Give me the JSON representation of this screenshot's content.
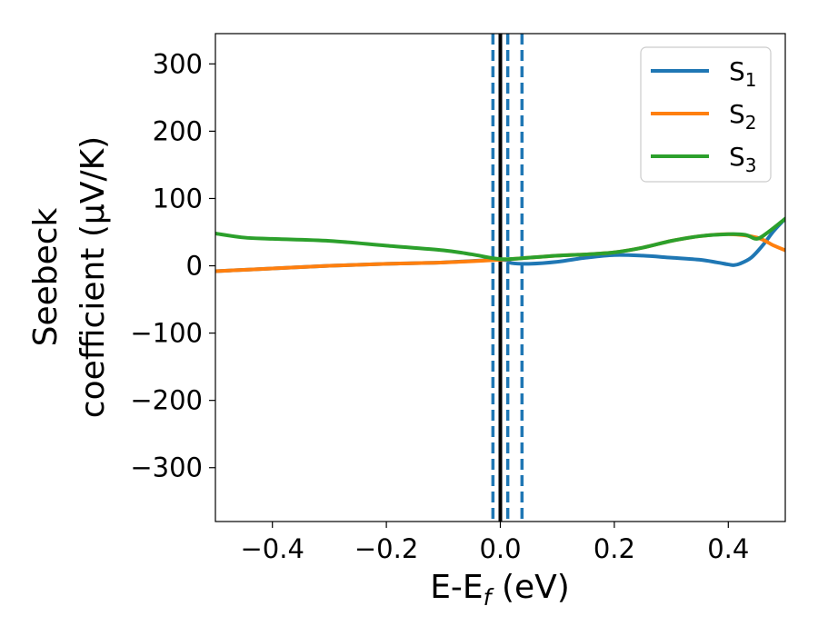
{
  "chart_data": {
    "type": "line",
    "xlabel": "E-E",
    "xlabel_sub": "f",
    "xlabel_unit": "(eV)",
    "ylabel_line1": "Seebeck",
    "ylabel_line2": "coefficient  (μV/K)",
    "xlim": [
      -0.5,
      0.5
    ],
    "ylim": [
      -380,
      345
    ],
    "xticks": [
      -0.4,
      -0.2,
      0.0,
      0.2,
      0.4
    ],
    "xtick_labels": [
      "−0.4",
      "−0.2",
      "0.0",
      "0.2",
      "0.4"
    ],
    "yticks": [
      300,
      200,
      100,
      0,
      -100,
      -200,
      -300
    ],
    "ytick_labels": [
      "300",
      "200",
      "100",
      "0",
      "−100",
      "−200",
      "−300"
    ],
    "grid": false,
    "legend_position": "top-right",
    "vertical_lines": [
      {
        "x": 0.0,
        "style": "solid",
        "color": "#000000"
      },
      {
        "x": -0.013,
        "style": "dashed",
        "color": "#1f77b4"
      },
      {
        "x": 0.013,
        "style": "dashed",
        "color": "#1f77b4"
      },
      {
        "x": 0.038,
        "style": "dashed",
        "color": "#1f77b4"
      }
    ],
    "series": [
      {
        "name": "S",
        "sub": "1",
        "color": "#1f77b4",
        "x": [
          -0.5,
          -0.4,
          -0.3,
          -0.2,
          -0.1,
          0.0,
          0.02,
          0.05,
          0.1,
          0.15,
          0.2,
          0.25,
          0.3,
          0.35,
          0.38,
          0.4,
          0.41,
          0.42,
          0.44,
          0.46,
          0.48,
          0.5
        ],
        "y": [
          -8,
          -4,
          0,
          3,
          5,
          9,
          4,
          3,
          6,
          12,
          16,
          15,
          12,
          9,
          5,
          2,
          1,
          3,
          12,
          30,
          52,
          70
        ]
      },
      {
        "name": "S",
        "sub": "2",
        "color": "#ff7f0e",
        "x": [
          -0.5,
          -0.4,
          -0.3,
          -0.2,
          -0.1,
          0.0,
          0.05,
          0.1,
          0.15,
          0.2,
          0.25,
          0.3,
          0.35,
          0.4,
          0.45,
          0.48,
          0.5
        ],
        "y": [
          -8,
          -4,
          0,
          3,
          5,
          9,
          12,
          15,
          17,
          20,
          27,
          37,
          44,
          47,
          42,
          30,
          23
        ]
      },
      {
        "name": "S",
        "sub": "3",
        "color": "#2ca02c",
        "x": [
          -0.5,
          -0.45,
          -0.4,
          -0.3,
          -0.2,
          -0.1,
          -0.05,
          0.0,
          0.05,
          0.1,
          0.15,
          0.2,
          0.25,
          0.3,
          0.35,
          0.4,
          0.43,
          0.45,
          0.47,
          0.5
        ],
        "y": [
          48,
          42,
          40,
          37,
          30,
          23,
          17,
          10,
          12,
          15,
          17,
          20,
          27,
          37,
          44,
          47,
          46,
          40,
          50,
          70
        ]
      }
    ]
  }
}
